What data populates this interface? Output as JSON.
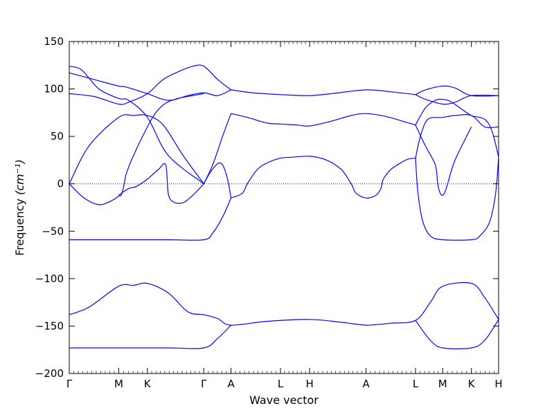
{
  "chart_data": {
    "type": "line",
    "title": "",
    "xlabel": "Wave vector",
    "ylabel": "Frequency",
    "ylabel_unit": "(cm⁻¹)",
    "ylim": [
      -200,
      150
    ],
    "yticks": [
      150,
      100,
      50,
      0,
      -50,
      -100,
      -150,
      -200
    ],
    "grid": false,
    "line_color": "#0000ff",
    "zero_line": {
      "y": 0,
      "style": "dotted",
      "color": "#0000ff"
    },
    "xticks": [
      {
        "label": "Γ",
        "x": 0.0
      },
      {
        "label": "M",
        "x": 1.0
      },
      {
        "label": "K",
        "x": 1.58
      },
      {
        "label": "Γ",
        "x": 2.72
      },
      {
        "label": "A",
        "x": 3.27
      },
      {
        "label": "L",
        "x": 4.27
      },
      {
        "label": "H",
        "x": 4.86
      },
      {
        "label": "A",
        "x": 6.0
      },
      {
        "label": "L",
        "x": 7.0
      },
      {
        "label": "M",
        "x": 7.55
      },
      {
        "label": "K",
        "x": 8.13
      },
      {
        "label": "H",
        "x": 8.68
      }
    ],
    "xlim": [
      0,
      8.68
    ],
    "series": [
      {
        "points": [
          [
            0,
            124
          ],
          [
            0.25,
            120
          ],
          [
            0.6,
            100
          ],
          [
            1.0,
            90
          ],
          [
            1.2,
            88
          ],
          [
            1.58,
            70
          ],
          [
            2.0,
            30
          ],
          [
            2.72,
            0
          ]
        ]
      },
      {
        "points": [
          [
            0,
            117
          ],
          [
            0.5,
            110
          ],
          [
            1.0,
            103
          ],
          [
            1.15,
            102
          ],
          [
            1.58,
            95
          ],
          [
            2.0,
            88
          ],
          [
            2.4,
            93
          ],
          [
            2.72,
            96
          ],
          [
            3.0,
            93
          ],
          [
            3.27,
            99
          ]
        ]
      },
      {
        "points": [
          [
            0,
            95
          ],
          [
            0.5,
            92
          ],
          [
            1.0,
            84
          ],
          [
            1.2,
            86
          ],
          [
            1.58,
            95
          ],
          [
            1.9,
            110
          ],
          [
            2.2,
            118
          ],
          [
            2.5,
            124
          ],
          [
            2.72,
            124
          ],
          [
            3.0,
            110
          ],
          [
            3.27,
            99
          ]
        ]
      },
      {
        "points": [
          [
            0,
            0
          ],
          [
            0.4,
            40
          ],
          [
            1.0,
            70
          ],
          [
            1.3,
            72
          ],
          [
            1.58,
            72
          ],
          [
            1.9,
            62
          ],
          [
            2.3,
            30
          ],
          [
            2.72,
            0
          ]
        ]
      },
      {
        "points": [
          [
            0,
            0
          ],
          [
            0.3,
            -15
          ],
          [
            0.6,
            -22
          ],
          [
            0.85,
            -18
          ],
          [
            1.0,
            -13
          ],
          [
            1.05,
            -12
          ],
          [
            1.1,
            -3
          ],
          [
            1.15,
            10
          ],
          [
            1.3,
            30
          ],
          [
            1.58,
            60
          ],
          [
            1.75,
            75
          ],
          [
            1.95,
            85
          ],
          [
            2.2,
            90
          ],
          [
            2.5,
            93
          ],
          [
            2.72,
            95
          ]
        ]
      },
      {
        "points": [
          [
            1.0,
            -12
          ],
          [
            1.2,
            -5
          ],
          [
            1.35,
            -3
          ],
          [
            1.58,
            5
          ],
          [
            1.8,
            15
          ],
          [
            1.95,
            20
          ],
          [
            2.0,
            -10
          ],
          [
            2.1,
            -19
          ],
          [
            2.3,
            -20
          ],
          [
            2.5,
            -12
          ],
          [
            2.72,
            0
          ]
        ]
      },
      {
        "points": [
          [
            0,
            -59
          ],
          [
            1.0,
            -59
          ],
          [
            2.0,
            -59
          ],
          [
            2.72,
            -59
          ],
          [
            2.9,
            -52
          ],
          [
            3.1,
            -35
          ],
          [
            3.27,
            -15
          ]
        ]
      },
      {
        "points": [
          [
            2.72,
            0
          ],
          [
            2.85,
            12
          ],
          [
            3.0,
            21
          ],
          [
            3.1,
            20
          ],
          [
            3.2,
            5
          ],
          [
            3.27,
            -15
          ]
        ]
      },
      {
        "points": [
          [
            2.72,
            0
          ],
          [
            2.9,
            20
          ],
          [
            3.1,
            50
          ],
          [
            3.27,
            74
          ]
        ]
      },
      {
        "points": [
          [
            3.27,
            -15
          ],
          [
            3.5,
            -10
          ],
          [
            3.6,
            0
          ],
          [
            3.8,
            15
          ],
          [
            4.0,
            22
          ],
          [
            4.27,
            27
          ],
          [
            4.5,
            28
          ],
          [
            4.86,
            29
          ],
          [
            5.2,
            25
          ],
          [
            5.5,
            15
          ],
          [
            5.7,
            0
          ],
          [
            5.8,
            -10
          ],
          [
            6.0,
            -15
          ],
          [
            6.2,
            -12
          ],
          [
            6.3,
            -5
          ],
          [
            6.35,
            5
          ],
          [
            6.5,
            15
          ],
          [
            6.7,
            22
          ],
          [
            6.85,
            26
          ],
          [
            7.0,
            27
          ]
        ]
      },
      {
        "points": [
          [
            3.27,
            74
          ],
          [
            3.6,
            70
          ],
          [
            4.0,
            64
          ],
          [
            4.27,
            63
          ],
          [
            4.6,
            62
          ],
          [
            4.86,
            61
          ],
          [
            5.3,
            66
          ],
          [
            5.7,
            72
          ],
          [
            6.0,
            74
          ],
          [
            6.4,
            71
          ],
          [
            6.8,
            65
          ],
          [
            7.0,
            62
          ]
        ]
      },
      {
        "points": [
          [
            3.27,
            99
          ],
          [
            3.7,
            96
          ],
          [
            4.27,
            94
          ],
          [
            4.86,
            93
          ],
          [
            5.3,
            95
          ],
          [
            6.0,
            99
          ],
          [
            6.5,
            97
          ],
          [
            7.0,
            94
          ]
        ]
      },
      {
        "points": [
          [
            7.0,
            94
          ],
          [
            7.2,
            99
          ],
          [
            7.55,
            103
          ],
          [
            7.8,
            101
          ],
          [
            8.13,
            93
          ],
          [
            8.68,
            93
          ]
        ]
      },
      {
        "points": [
          [
            7.0,
            94
          ],
          [
            7.2,
            89
          ],
          [
            7.55,
            84
          ],
          [
            7.8,
            86
          ],
          [
            8.13,
            93
          ],
          [
            8.68,
            93
          ]
        ]
      },
      {
        "points": [
          [
            7.0,
            62
          ],
          [
            7.2,
            80
          ],
          [
            7.4,
            88
          ],
          [
            7.55,
            89
          ],
          [
            7.7,
            87
          ],
          [
            7.9,
            80
          ],
          [
            8.13,
            72
          ],
          [
            8.4,
            68
          ],
          [
            8.55,
            55
          ],
          [
            8.68,
            28
          ]
        ]
      },
      {
        "points": [
          [
            7.0,
            27
          ],
          [
            7.1,
            50
          ],
          [
            7.25,
            68
          ],
          [
            7.55,
            70
          ],
          [
            7.8,
            72
          ],
          [
            8.13,
            72
          ],
          [
            8.4,
            60
          ],
          [
            8.68,
            60
          ]
        ]
      },
      {
        "points": [
          [
            7.0,
            27
          ],
          [
            7.05,
            -10
          ],
          [
            7.15,
            -40
          ],
          [
            7.3,
            -55
          ],
          [
            7.55,
            -59
          ],
          [
            8.13,
            -59
          ],
          [
            8.3,
            -55
          ],
          [
            8.5,
            -40
          ],
          [
            8.62,
            -10
          ],
          [
            8.68,
            28
          ]
        ]
      },
      {
        "points": [
          [
            7.0,
            62
          ],
          [
            7.2,
            40
          ],
          [
            7.4,
            20
          ],
          [
            7.45,
            0
          ],
          [
            7.5,
            -10
          ],
          [
            7.55,
            -12
          ],
          [
            7.6,
            -8
          ],
          [
            7.65,
            0
          ],
          [
            7.8,
            25
          ],
          [
            8.13,
            60
          ]
        ]
      },
      {
        "points": [
          [
            0,
            -138
          ],
          [
            0.4,
            -130
          ],
          [
            1.0,
            -108
          ],
          [
            1.3,
            -107
          ],
          [
            1.58,
            -105
          ],
          [
            2.0,
            -115
          ],
          [
            2.4,
            -135
          ],
          [
            2.72,
            -138
          ],
          [
            3.0,
            -142
          ],
          [
            3.27,
            -149
          ],
          [
            4.0,
            -145
          ],
          [
            4.86,
            -143
          ],
          [
            5.5,
            -146
          ],
          [
            6.0,
            -149
          ],
          [
            6.5,
            -147
          ],
          [
            7.0,
            -144
          ],
          [
            7.3,
            -125
          ],
          [
            7.55,
            -108
          ],
          [
            8.13,
            -105
          ],
          [
            8.4,
            -120
          ],
          [
            8.68,
            -143
          ]
        ]
      },
      {
        "points": [
          [
            0,
            -173
          ],
          [
            1.0,
            -173
          ],
          [
            2.0,
            -173
          ],
          [
            2.72,
            -173
          ],
          [
            3.0,
            -163
          ],
          [
            3.27,
            -149
          ]
        ]
      },
      {
        "points": [
          [
            7.0,
            -144
          ],
          [
            7.3,
            -165
          ],
          [
            7.55,
            -173
          ],
          [
            8.13,
            -173
          ],
          [
            8.4,
            -165
          ],
          [
            8.68,
            -143
          ]
        ]
      }
    ]
  }
}
